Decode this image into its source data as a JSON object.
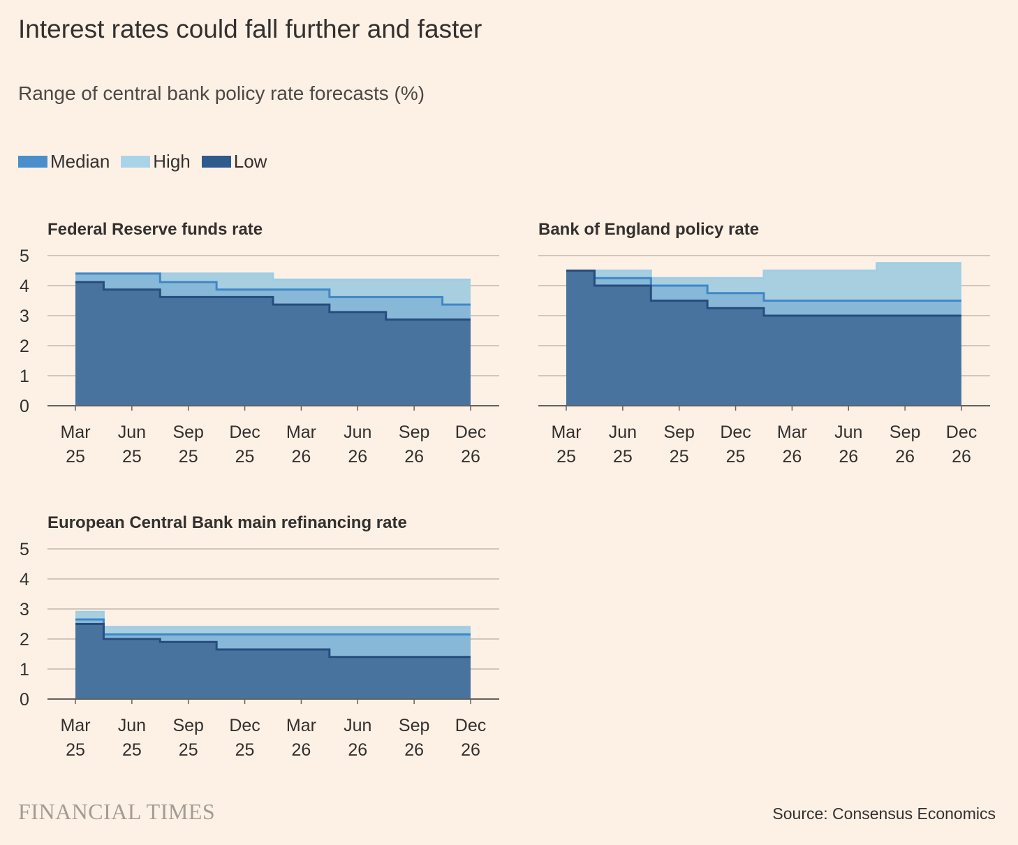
{
  "header": {
    "title": "Interest rates could fall further and faster",
    "subtitle": "Range of central bank policy rate forecasts (%)"
  },
  "legend": [
    {
      "name": "Median",
      "color": "#4a8fcb"
    },
    {
      "name": "High",
      "color": "#a9d4e8"
    },
    {
      "name": "Low",
      "color": "#2e5a8e"
    }
  ],
  "colors": {
    "background": "#fdf1e6",
    "grid": "#c2b8ae",
    "axis": "#66605c",
    "high_fill": "#a8cfe0",
    "high_line": "#9fcde6",
    "median_fill": "#88b8d8",
    "median_line": "#3f87c8",
    "low_fill": "#49739f",
    "low_line": "#264d7d"
  },
  "footer": {
    "brand": "FINANCIAL TIMES",
    "source": "Source: Consensus Economics"
  },
  "chart_data": [
    {
      "type": "area",
      "step": true,
      "title": "Federal Reserve funds rate",
      "x": [
        "Mar 25",
        "Jun 25",
        "Sep 25",
        "Dec 25",
        "Mar 26",
        "Jun 26",
        "Sep 26",
        "Dec 26"
      ],
      "ylim": [
        0,
        5
      ],
      "yticks": [
        0,
        1,
        2,
        3,
        4,
        5
      ],
      "grid": true,
      "series": [
        {
          "name": "High",
          "values": [
            4.4,
            4.4,
            4.4,
            4.4,
            4.2,
            4.2,
            4.2,
            4.2
          ]
        },
        {
          "name": "Median",
          "values": [
            4.4,
            4.4,
            4.12,
            3.87,
            3.87,
            3.62,
            3.62,
            3.37
          ]
        },
        {
          "name": "Low",
          "values": [
            4.12,
            3.87,
            3.62,
            3.62,
            3.37,
            3.12,
            2.87,
            2.87
          ]
        }
      ]
    },
    {
      "type": "area",
      "step": true,
      "title": "Bank of England policy rate",
      "x": [
        "Mar 25",
        "Jun 25",
        "Sep 25",
        "Dec 25",
        "Mar 26",
        "Jun 26",
        "Sep 26",
        "Dec 26"
      ],
      "ylim": [
        0,
        5
      ],
      "yticks": [
        0,
        1,
        2,
        3,
        4,
        5
      ],
      "grid": true,
      "series": [
        {
          "name": "High",
          "values": [
            4.5,
            4.5,
            4.25,
            4.25,
            4.5,
            4.5,
            4.75,
            4.75
          ]
        },
        {
          "name": "Median",
          "values": [
            4.5,
            4.25,
            4.0,
            3.75,
            3.5,
            3.5,
            3.5,
            3.5
          ]
        },
        {
          "name": "Low",
          "values": [
            4.5,
            4.0,
            3.5,
            3.25,
            3.0,
            3.0,
            3.0,
            3.0
          ]
        }
      ]
    },
    {
      "type": "area",
      "step": true,
      "title": "European Central Bank main refinancing rate",
      "x": [
        "Mar 25",
        "Jun 25",
        "Sep 25",
        "Dec 25",
        "Mar 26",
        "Jun 26",
        "Sep 26",
        "Dec 26"
      ],
      "ylim": [
        0,
        5
      ],
      "yticks": [
        0,
        1,
        2,
        3,
        4,
        5
      ],
      "grid": true,
      "series": [
        {
          "name": "High",
          "values": [
            2.9,
            2.4,
            2.4,
            2.4,
            2.4,
            2.4,
            2.4,
            2.4
          ]
        },
        {
          "name": "Median",
          "values": [
            2.65,
            2.15,
            2.15,
            2.15,
            2.15,
            2.15,
            2.15,
            2.15
          ]
        },
        {
          "name": "Low",
          "values": [
            2.5,
            2.0,
            1.9,
            1.65,
            1.65,
            1.4,
            1.4,
            1.4
          ]
        }
      ]
    }
  ]
}
